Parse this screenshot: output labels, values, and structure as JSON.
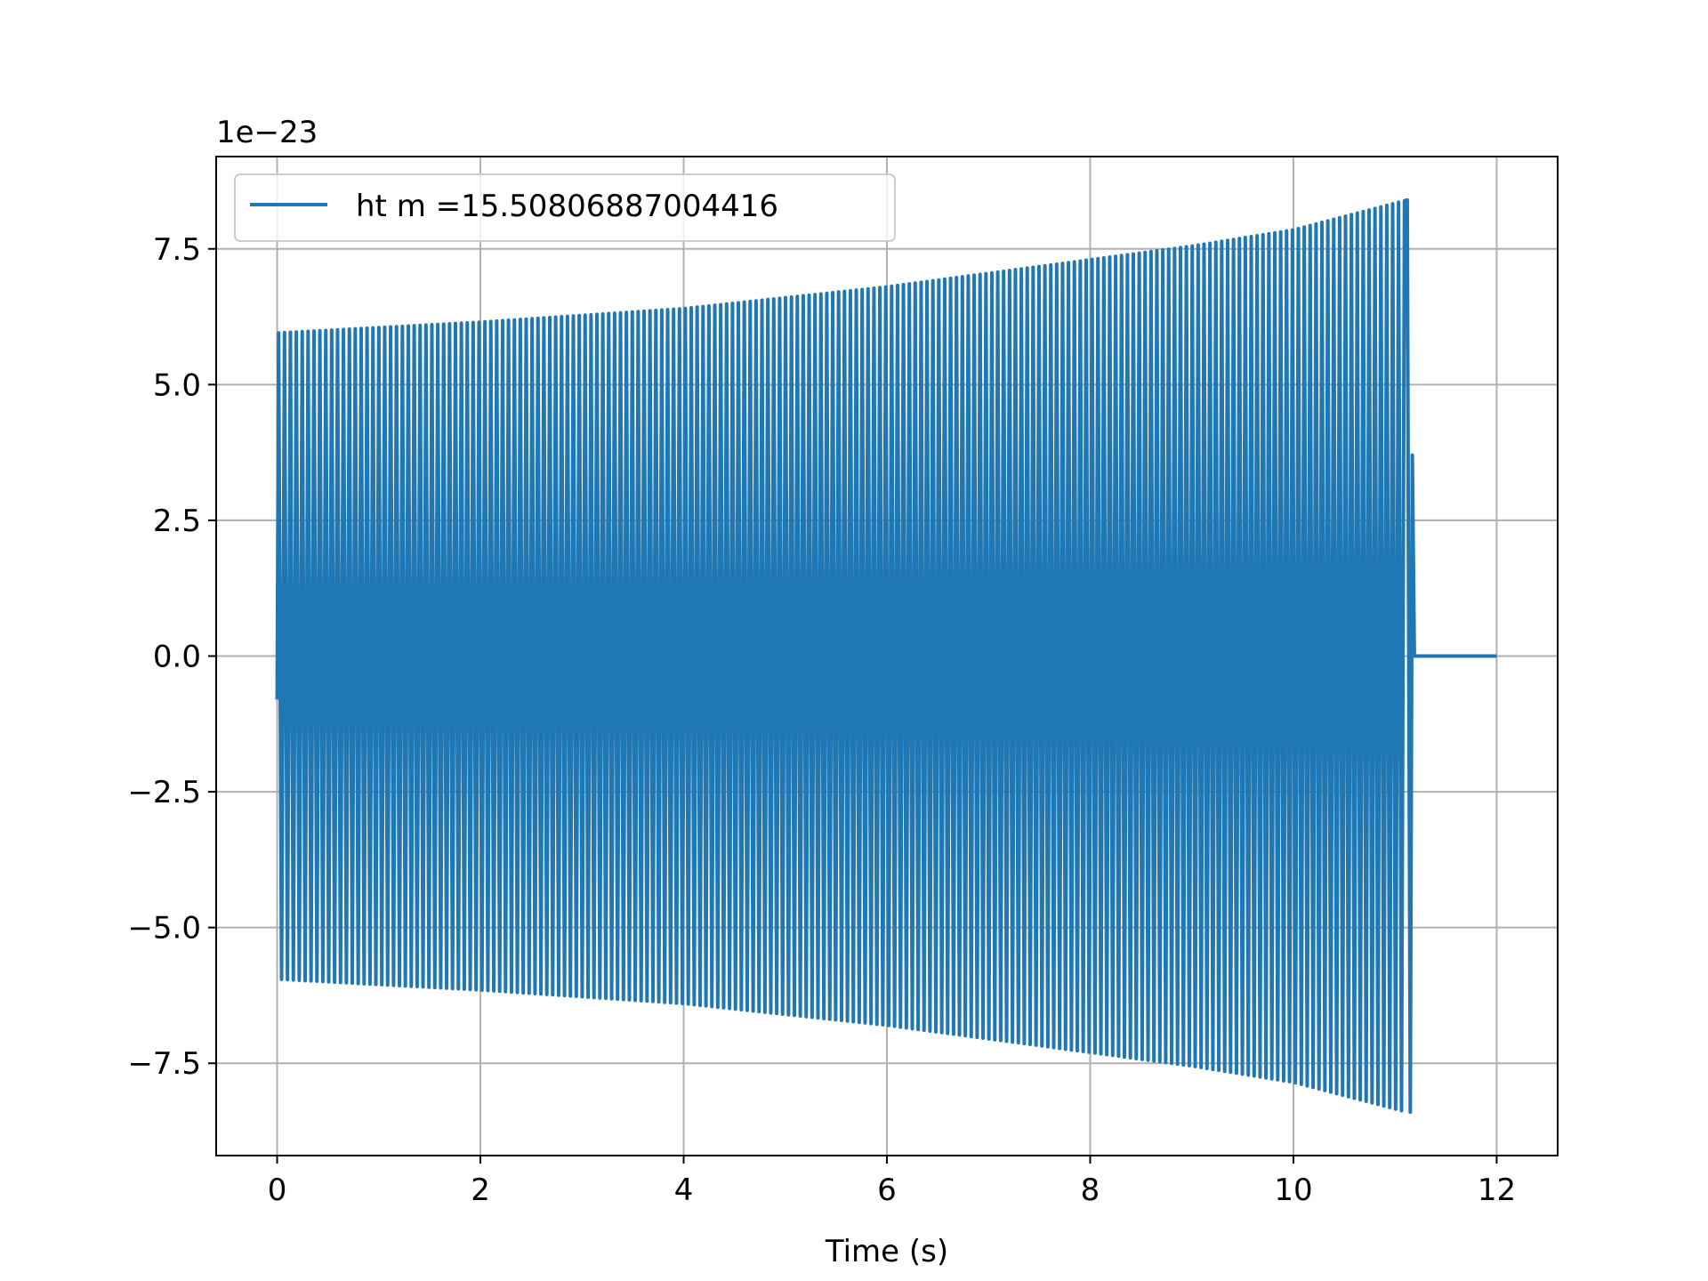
{
  "chart_data": {
    "type": "line",
    "title": "",
    "xlabel": "Time (s)",
    "ylabel": "",
    "y_offset_text": "1e−23",
    "xlim": [
      -0.6,
      12.6
    ],
    "ylim": [
      -9.2,
      9.2
    ],
    "grid": true,
    "legend_position": "upper-left",
    "x_ticks": [
      {
        "value": 0,
        "label": "0"
      },
      {
        "value": 2,
        "label": "2"
      },
      {
        "value": 4,
        "label": "4"
      },
      {
        "value": 6,
        "label": "6"
      },
      {
        "value": 8,
        "label": "8"
      },
      {
        "value": 10,
        "label": "10"
      },
      {
        "value": 12,
        "label": "12"
      }
    ],
    "y_ticks": [
      {
        "value": 7.5,
        "label": "7.5"
      },
      {
        "value": 5.0,
        "label": "5.0"
      },
      {
        "value": 2.5,
        "label": "2.5"
      },
      {
        "value": 0.0,
        "label": "0.0"
      },
      {
        "value": -2.5,
        "label": "−2.5"
      },
      {
        "value": -5.0,
        "label": "−5.0"
      },
      {
        "value": -7.5,
        "label": "−7.5"
      }
    ],
    "series": [
      {
        "name": "ht m =15.50806887004416",
        "color": "#1f77b4",
        "signal": {
          "start_time": 0.0,
          "merger_time": 11.12,
          "end_time": 12.0,
          "start_value": -0.8,
          "envelope": [
            {
              "t": 0.0,
              "amplitude": 5.95
            },
            {
              "t": 2.0,
              "amplitude": 6.15
            },
            {
              "t": 4.0,
              "amplitude": 6.4
            },
            {
              "t": 6.0,
              "amplitude": 6.8
            },
            {
              "t": 8.0,
              "amplitude": 7.3
            },
            {
              "t": 9.0,
              "amplitude": 7.55
            },
            {
              "t": 10.0,
              "amplitude": 7.85
            },
            {
              "t": 11.12,
              "amplitude": 8.4
            }
          ],
          "final_spike": {
            "t": 11.17,
            "value": 3.7
          },
          "post_merger_value": 0.0
        }
      }
    ]
  }
}
